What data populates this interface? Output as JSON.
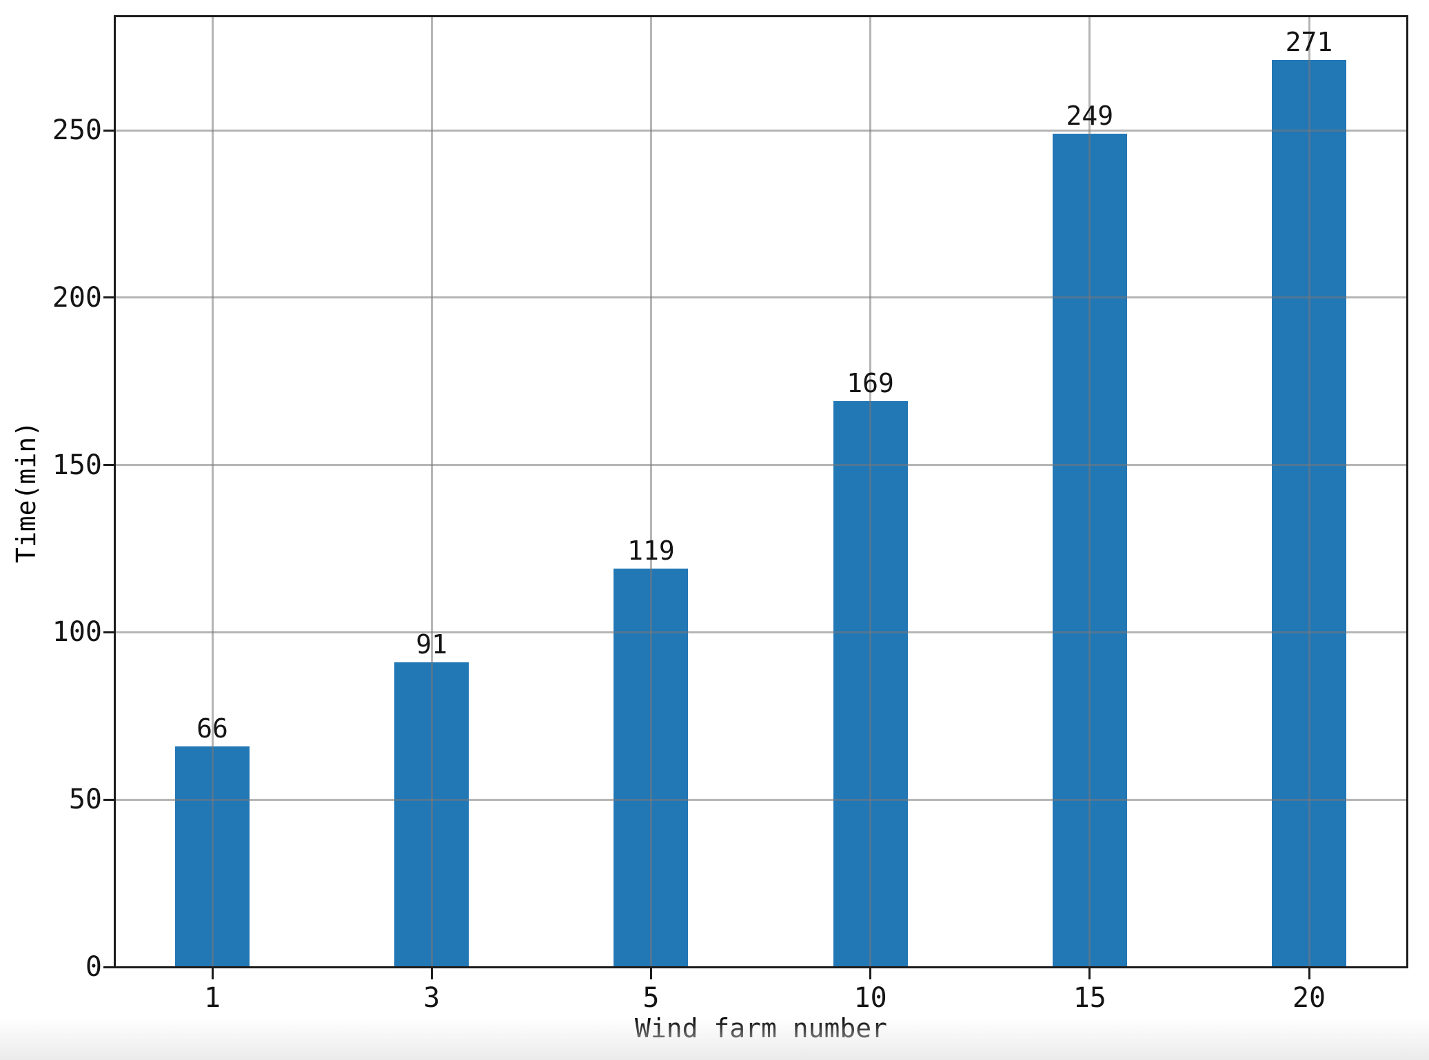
{
  "chart_data": {
    "type": "bar",
    "title": "",
    "categories": [
      "1",
      "3",
      "5",
      "10",
      "15",
      "20"
    ],
    "values": [
      66,
      91,
      119,
      169,
      249,
      271
    ],
    "bar_value_labels": [
      "66",
      "91",
      "119",
      "169",
      "249",
      "271"
    ],
    "xlabel": "Wind farm number",
    "ylabel": "Time(min)",
    "ylim": [
      0,
      284
    ],
    "yticks": [
      0,
      50,
      100,
      150,
      200,
      250
    ],
    "grid": true,
    "legend": "none",
    "colors": {
      "bar_fill": "#2277b5",
      "grid_rgba": "rgba(120,120,120,0.55)",
      "spine": "#1c1c1c",
      "text": "#141414"
    }
  }
}
